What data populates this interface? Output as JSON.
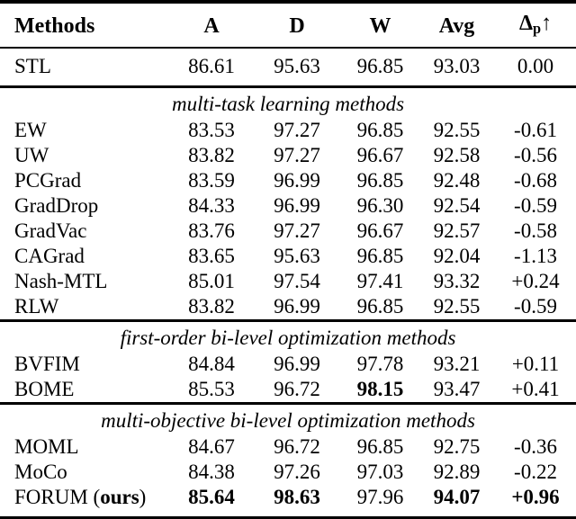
{
  "table": {
    "columns": {
      "methods": "Methods",
      "a": "A",
      "d": "D",
      "w": "W",
      "avg": "Avg",
      "delta": {
        "symbol": "Δ",
        "subscript": "p",
        "arrow": "↑"
      }
    },
    "sections": [
      {
        "heading": "",
        "rows": [
          {
            "method": [
              [
                "STL",
                false
              ]
            ],
            "values": [
              [
                "86.61",
                false
              ],
              [
                "95.63",
                false
              ],
              [
                "96.85",
                false
              ],
              [
                "93.03",
                false
              ],
              [
                "0.00",
                false
              ]
            ]
          }
        ]
      },
      {
        "heading": "multi-task learning methods",
        "rows": [
          {
            "method": [
              [
                "EW",
                false
              ]
            ],
            "values": [
              [
                "83.53",
                false
              ],
              [
                "97.27",
                false
              ],
              [
                "96.85",
                false
              ],
              [
                "92.55",
                false
              ],
              [
                "-0.61",
                false
              ]
            ]
          },
          {
            "method": [
              [
                "UW",
                false
              ]
            ],
            "values": [
              [
                "83.82",
                false
              ],
              [
                "97.27",
                false
              ],
              [
                "96.67",
                false
              ],
              [
                "92.58",
                false
              ],
              [
                "-0.56",
                false
              ]
            ]
          },
          {
            "method": [
              [
                "PCGrad",
                false
              ]
            ],
            "values": [
              [
                "83.59",
                false
              ],
              [
                "96.99",
                false
              ],
              [
                "96.85",
                false
              ],
              [
                "92.48",
                false
              ],
              [
                "-0.68",
                false
              ]
            ]
          },
          {
            "method": [
              [
                "GradDrop",
                false
              ]
            ],
            "values": [
              [
                "84.33",
                false
              ],
              [
                "96.99",
                false
              ],
              [
                "96.30",
                false
              ],
              [
                "92.54",
                false
              ],
              [
                "-0.59",
                false
              ]
            ]
          },
          {
            "method": [
              [
                "GradVac",
                false
              ]
            ],
            "values": [
              [
                "83.76",
                false
              ],
              [
                "97.27",
                false
              ],
              [
                "96.67",
                false
              ],
              [
                "92.57",
                false
              ],
              [
                "-0.58",
                false
              ]
            ]
          },
          {
            "method": [
              [
                "CAGrad",
                false
              ]
            ],
            "values": [
              [
                "83.65",
                false
              ],
              [
                "95.63",
                false
              ],
              [
                "96.85",
                false
              ],
              [
                "92.04",
                false
              ],
              [
                "-1.13",
                false
              ]
            ]
          },
          {
            "method": [
              [
                "Nash-MTL",
                false
              ]
            ],
            "values": [
              [
                "85.01",
                false
              ],
              [
                "97.54",
                false
              ],
              [
                "97.41",
                false
              ],
              [
                "93.32",
                false
              ],
              [
                "+0.24",
                false
              ]
            ]
          },
          {
            "method": [
              [
                "RLW",
                false
              ]
            ],
            "values": [
              [
                "83.82",
                false
              ],
              [
                "96.99",
                false
              ],
              [
                "96.85",
                false
              ],
              [
                "92.55",
                false
              ],
              [
                "-0.59",
                false
              ]
            ]
          }
        ]
      },
      {
        "heading": "first-order bi-level optimization methods",
        "rows": [
          {
            "method": [
              [
                "BVFIM",
                false
              ]
            ],
            "values": [
              [
                "84.84",
                false
              ],
              [
                "96.99",
                false
              ],
              [
                "97.78",
                false
              ],
              [
                "93.21",
                false
              ],
              [
                "+0.11",
                false
              ]
            ]
          },
          {
            "method": [
              [
                "BOME",
                false
              ]
            ],
            "values": [
              [
                "85.53",
                false
              ],
              [
                "96.72",
                false
              ],
              [
                "98.15",
                true
              ],
              [
                "93.47",
                false
              ],
              [
                "+0.41",
                false
              ]
            ]
          }
        ]
      },
      {
        "heading": "multi-objective bi-level optimization methods",
        "rows": [
          {
            "method": [
              [
                "MOML",
                false
              ]
            ],
            "values": [
              [
                "84.67",
                false
              ],
              [
                "96.72",
                false
              ],
              [
                "96.85",
                false
              ],
              [
                "92.75",
                false
              ],
              [
                "-0.36",
                false
              ]
            ]
          },
          {
            "method": [
              [
                "MoCo",
                false
              ]
            ],
            "values": [
              [
                "84.38",
                false
              ],
              [
                "97.26",
                false
              ],
              [
                "97.03",
                false
              ],
              [
                "92.89",
                false
              ],
              [
                "-0.22",
                false
              ]
            ]
          },
          {
            "method": [
              [
                "FORUM (",
                false
              ],
              [
                "ours",
                true
              ],
              [
                ")",
                false
              ]
            ],
            "values": [
              [
                "85.64",
                true
              ],
              [
                "98.63",
                true
              ],
              [
                "97.96",
                false
              ],
              [
                "94.07",
                true
              ],
              [
                "+0.96",
                true
              ]
            ]
          }
        ]
      }
    ]
  }
}
